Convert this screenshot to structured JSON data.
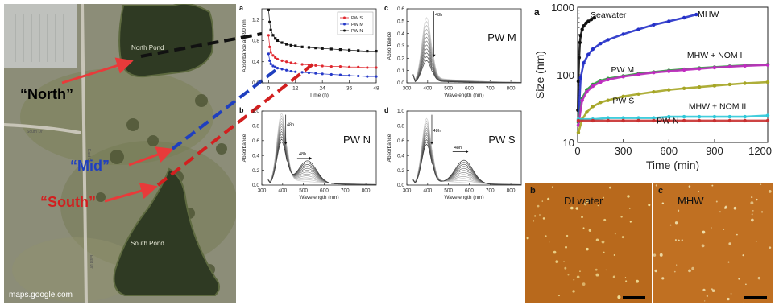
{
  "map": {
    "labels": {
      "north_pond": "North Pond",
      "south_pond": "South Pond"
    },
    "site_labels": [
      {
        "text": "“North”",
        "color": "#000000"
      },
      {
        "text": "“Mid”",
        "color": "#1f3fbf"
      },
      {
        "text": "“South”",
        "color": "#d21f1f"
      }
    ],
    "road_labels": [
      "South Dr",
      "East Dr",
      "East Dr"
    ],
    "credit": "maps.google.com",
    "colors": {
      "north": "#000000",
      "mid": "#1f3fbf",
      "south": "#d21f1f",
      "arrow": "#e83a3a"
    }
  },
  "chart_data": [
    {
      "panel_letter": "a",
      "type": "line",
      "ylabel": "Absorbance at 390 nm",
      "xlabel": "Time (h)",
      "xlim": [
        -3,
        48
      ],
      "ylim": [
        0,
        1.4
      ],
      "xticks": [
        0,
        12,
        24,
        36,
        48
      ],
      "yticks": [
        0.0,
        0.4,
        0.8,
        1.2
      ],
      "legend_position": "top-right",
      "series": [
        {
          "name": "PW S",
          "color": "#e0282f",
          "marker": "circle",
          "x": [
            0,
            0.5,
            1,
            2,
            3,
            4,
            6,
            8,
            10,
            12,
            15,
            18,
            21,
            24,
            28,
            32,
            36,
            40,
            44,
            48
          ],
          "y": [
            0.9,
            0.68,
            0.58,
            0.52,
            0.48,
            0.45,
            0.42,
            0.4,
            0.38,
            0.37,
            0.35,
            0.34,
            0.33,
            0.32,
            0.31,
            0.31,
            0.3,
            0.3,
            0.29,
            0.29
          ]
        },
        {
          "name": "PW M",
          "color": "#2438c8",
          "marker": "circle",
          "x": [
            0,
            0.5,
            1,
            2,
            3,
            4,
            6,
            8,
            10,
            12,
            15,
            18,
            21,
            24,
            28,
            32,
            36,
            40,
            44,
            48
          ],
          "y": [
            0.55,
            0.42,
            0.36,
            0.32,
            0.3,
            0.28,
            0.26,
            0.24,
            0.22,
            0.21,
            0.2,
            0.19,
            0.18,
            0.17,
            0.16,
            0.15,
            0.14,
            0.13,
            0.12,
            0.12
          ]
        },
        {
          "name": "PW N",
          "color": "#111111",
          "marker": "square",
          "x": [
            0,
            0.5,
            1,
            2,
            3,
            4,
            6,
            8,
            10,
            12,
            15,
            18,
            21,
            24,
            28,
            32,
            36,
            40,
            44,
            48
          ],
          "y": [
            1.38,
            1.15,
            1.0,
            0.9,
            0.84,
            0.8,
            0.76,
            0.73,
            0.71,
            0.7,
            0.68,
            0.67,
            0.66,
            0.65,
            0.64,
            0.63,
            0.62,
            0.61,
            0.6,
            0.6
          ]
        }
      ]
    },
    {
      "panel_letter": "b",
      "type": "line",
      "panel_title": "PW N",
      "ylabel": "Absorbance",
      "xlabel": "Wavelength (nm)",
      "xlim": [
        300,
        850
      ],
      "ylim": [
        0,
        1.0
      ],
      "xticks": [
        300,
        400,
        500,
        600,
        700,
        800
      ],
      "yticks": [
        0.0,
        0.2,
        0.4,
        0.6,
        0.8,
        1.0
      ],
      "annotations": [
        "48h",
        "48h"
      ],
      "curves_count": 12,
      "initial_peak": {
        "x": 395,
        "y": 0.97
      },
      "final_peak": {
        "x": 395,
        "y": 0.58
      },
      "final_shoulder": {
        "x": 520,
        "y": 0.4
      }
    },
    {
      "panel_letter": "c",
      "type": "line",
      "panel_title": "PW M",
      "ylabel": "Absorbance",
      "xlabel": "Wavelength (nm)",
      "xlim": [
        300,
        850
      ],
      "ylim": [
        0,
        0.6
      ],
      "xticks": [
        300,
        400,
        500,
        600,
        700,
        800
      ],
      "yticks": [
        0.0,
        0.1,
        0.2,
        0.3,
        0.4,
        0.5,
        0.6
      ],
      "annotations": [
        "48h"
      ],
      "curves_count": 12,
      "initial_peak": {
        "x": 395,
        "y": 0.53
      },
      "final_peak": {
        "x": 395,
        "y": 0.18
      }
    },
    {
      "panel_letter": "d",
      "type": "line",
      "panel_title": "PW S",
      "ylabel": "Absorbance",
      "xlabel": "Wavelength (nm)",
      "xlim": [
        300,
        850
      ],
      "ylim": [
        0,
        1.0
      ],
      "xticks": [
        300,
        400,
        500,
        600,
        700,
        800
      ],
      "yticks": [
        0.0,
        0.2,
        0.4,
        0.6,
        0.8,
        1.0
      ],
      "annotations": [
        "48h",
        "48h"
      ],
      "curves_count": 12,
      "initial_peak": {
        "x": 395,
        "y": 0.9
      },
      "final_peak": {
        "x": 395,
        "y": 0.55
      },
      "final_shoulder": {
        "x": 575,
        "y": 0.42
      }
    },
    {
      "panel_letter": "a",
      "type": "scatter",
      "ylabel": "Size (nm)",
      "xlabel": "Time (min)",
      "xlim": [
        0,
        1250
      ],
      "ylim": [
        10,
        1000
      ],
      "yscale": "log",
      "xticks": [
        0,
        300,
        600,
        900,
        1200
      ],
      "yticks": [
        10,
        100,
        1000
      ],
      "series": [
        {
          "label": "Seawater",
          "color": "#111111",
          "x": [
            2,
            5,
            10,
            15,
            20,
            30,
            40,
            55,
            70,
            90,
            110
          ],
          "y": [
            30,
            80,
            180,
            300,
            380,
            470,
            530,
            580,
            620,
            660,
            700
          ]
        },
        {
          "label": "MHW",
          "color": "#2430c8",
          "x": [
            5,
            20,
            40,
            70,
            100,
            150,
            200,
            300,
            400,
            500,
            600,
            700,
            780
          ],
          "y": [
            20,
            90,
            150,
            200,
            240,
            290,
            330,
            400,
            470,
            550,
            620,
            700,
            780
          ]
        },
        {
          "label": "MHW + NOM I",
          "color": "#2b9a3a",
          "x": [
            5,
            30,
            60,
            100,
            150,
            200,
            300,
            400,
            500,
            600,
            700,
            800,
            900,
            1000,
            1100,
            1250
          ],
          "y": [
            20,
            45,
            60,
            72,
            82,
            88,
            96,
            104,
            110,
            116,
            121,
            126,
            130,
            134,
            138,
            142
          ]
        },
        {
          "label": "PW M",
          "color": "#c02ac0",
          "x": [
            5,
            30,
            60,
            100,
            150,
            200,
            300,
            400,
            500,
            600,
            700,
            800,
            900,
            1000,
            1100,
            1250
          ],
          "y": [
            18,
            42,
            56,
            68,
            78,
            85,
            94,
            101,
            108,
            113,
            118,
            123,
            128,
            132,
            136,
            140
          ]
        },
        {
          "label": "PW S",
          "color": "#a5a524",
          "x": [
            5,
            30,
            60,
            100,
            150,
            200,
            300,
            400,
            500,
            600,
            700,
            800,
            900,
            1000,
            1100,
            1250
          ],
          "y": [
            14,
            22,
            28,
            34,
            39,
            42,
            48,
            52,
            56,
            60,
            63,
            66,
            69,
            72,
            75,
            78
          ]
        },
        {
          "label": "MHW + NOM II",
          "color": "#2ec8d8",
          "x": [
            5,
            100,
            200,
            300,
            400,
            500,
            600,
            700,
            800,
            900,
            1000,
            1100,
            1250
          ],
          "y": [
            22,
            22,
            23,
            23,
            23,
            23,
            24,
            24,
            24,
            24,
            24,
            24,
            25
          ]
        },
        {
          "label": "PW N",
          "color": "#c83030",
          "x": [
            5,
            100,
            200,
            300,
            400,
            500,
            600,
            700,
            800,
            900,
            1000,
            1100,
            1250
          ],
          "y": [
            21,
            21,
            21,
            21,
            21,
            21,
            21,
            21,
            21,
            21,
            21,
            21,
            21
          ]
        }
      ]
    }
  ],
  "afm": [
    {
      "panel_letter": "b",
      "label": "DI water",
      "background": "#b8691c",
      "particle_color": "#f4e7a0"
    },
    {
      "panel_letter": "c",
      "label": "MHW",
      "background": "#c07022",
      "particle_color": "#f6f0c0"
    }
  ]
}
